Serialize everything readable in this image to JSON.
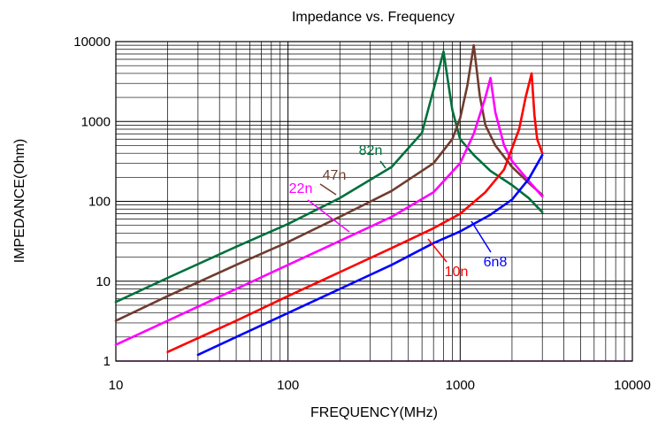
{
  "chart_data": {
    "type": "line",
    "title": "Impedance vs. Frequency",
    "xlabel": "FREQUENCY(MHz)",
    "ylabel": "IMPEDANCE(Ohm)",
    "x_scale": "log",
    "y_scale": "log",
    "xlim": [
      10,
      10000
    ],
    "ylim": [
      1,
      10000
    ],
    "x_ticks": [
      "10",
      "100",
      "1000",
      "10000"
    ],
    "y_ticks": [
      "1",
      "10",
      "100",
      "1000",
      "10000"
    ],
    "grid": true,
    "legend": "none (inline labels)",
    "series": [
      {
        "name": "82n",
        "color": "#00703c",
        "x": [
          10,
          20,
          50,
          100,
          200,
          400,
          600,
          700,
          800,
          900,
          1000,
          1200,
          1500,
          2000,
          2500,
          3000
        ],
        "y": [
          5.5,
          11,
          27,
          52,
          110,
          270,
          720,
          2500,
          7500,
          1400,
          600,
          380,
          240,
          160,
          110,
          73
        ]
      },
      {
        "name": "47n",
        "color": "#6f3c2f",
        "x": [
          10,
          20,
          50,
          100,
          200,
          400,
          700,
          900,
          1000,
          1100,
          1200,
          1300,
          1400,
          1600,
          2000,
          2500,
          3000
        ],
        "y": [
          3.2,
          6.5,
          16,
          31,
          64,
          135,
          300,
          600,
          1100,
          2800,
          9000,
          2100,
          900,
          500,
          270,
          170,
          120
        ]
      },
      {
        "name": "22n",
        "color": "#ff00ff",
        "x": [
          10,
          20,
          50,
          100,
          200,
          400,
          700,
          1000,
          1200,
          1400,
          1500,
          1600,
          1800,
          2000,
          2500,
          3000
        ],
        "y": [
          1.6,
          3.2,
          8,
          16,
          32,
          64,
          130,
          300,
          700,
          2000,
          3500,
          1300,
          500,
          320,
          180,
          115
        ]
      },
      {
        "name": "10n",
        "color": "#ff0000",
        "x": [
          20,
          50,
          100,
          200,
          400,
          700,
          1000,
          1400,
          1800,
          2200,
          2400,
          2600,
          2700,
          2800,
          3000
        ],
        "y": [
          1.3,
          3.2,
          6.5,
          13,
          26,
          46,
          70,
          130,
          250,
          800,
          2000,
          4000,
          1200,
          600,
          400
        ]
      },
      {
        "name": "6n8",
        "color": "#0000ff",
        "x": [
          30,
          50,
          100,
          200,
          400,
          700,
          1000,
          1500,
          2000,
          2500,
          3000
        ],
        "y": [
          1.2,
          2,
          4,
          8,
          16,
          30,
          42,
          68,
          105,
          190,
          380
        ]
      }
    ]
  }
}
